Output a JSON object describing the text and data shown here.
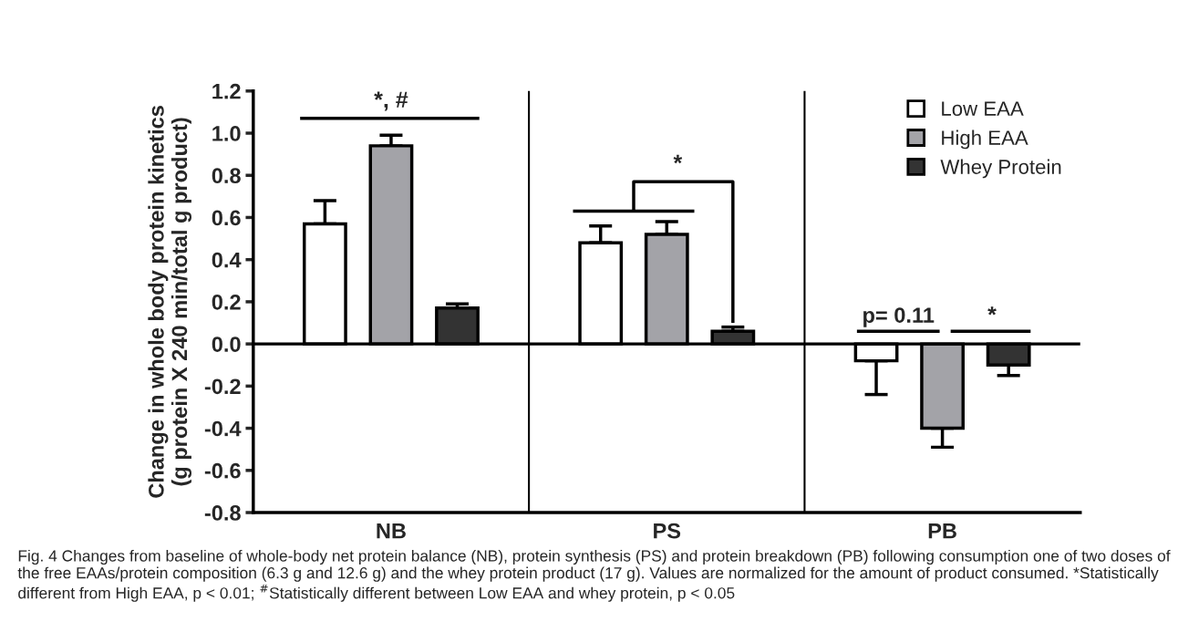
{
  "chart_data": {
    "type": "bar",
    "ylabel": "Change in whole body protein kinetics\n(g protein X 240 min/total g product)",
    "categories": [
      "NB",
      "PS",
      "PB"
    ],
    "series": [
      {
        "name": "Low EAA",
        "color": "#ffffff",
        "values": [
          0.57,
          0.48,
          -0.08
        ],
        "errors": [
          [
            0.57,
            0.68
          ],
          [
            0.48,
            0.56
          ],
          [
            -0.24,
            -0.08
          ]
        ]
      },
      {
        "name": "High EAA",
        "color": "#a3a3a8",
        "values": [
          0.94,
          0.52,
          -0.4
        ],
        "errors": [
          [
            0.94,
            0.99
          ],
          [
            0.52,
            0.58
          ],
          [
            -0.49,
            -0.4
          ]
        ]
      },
      {
        "name": "Whey Protein",
        "color": "#333333",
        "values": [
          0.17,
          0.06,
          -0.1
        ],
        "errors": [
          [
            0.17,
            0.19
          ],
          [
            0.06,
            0.08
          ],
          [
            -0.15,
            -0.1
          ]
        ]
      }
    ],
    "ylim": [
      -0.8,
      1.2
    ],
    "yticks": [
      {
        "value": -0.8,
        "label": "-0.8"
      },
      {
        "value": -0.6,
        "label": "-0.6"
      },
      {
        "value": -0.4,
        "label": "-0.4"
      },
      {
        "value": -0.2,
        "label": "-0.2"
      },
      {
        "value": 0,
        "label": "0.0"
      },
      0.2,
      0.4,
      0.6,
      0.8,
      {
        "value": 1,
        "label": "1.0"
      },
      1.2
    ],
    "legend": "top right",
    "grid": false,
    "annotations": [
      "*, #",
      "*",
      "p= 0.11",
      "*",
      "Fig. 4 Changes from baseline of whole-body net protein balance (NB), protein synthesis (PS) and protein breakdown (PB) following consumption one of two doses of the free EAAs/protein composition (6.3 g and 12.6 g) and the whey protein product (17 g). Values are normalized for the amount of product consumed. *Statistically different from High EAA, p < 0.01; $^{#}$Statistically different between Low EAA and whey protein, p < 0.05"
    ]
  }
}
